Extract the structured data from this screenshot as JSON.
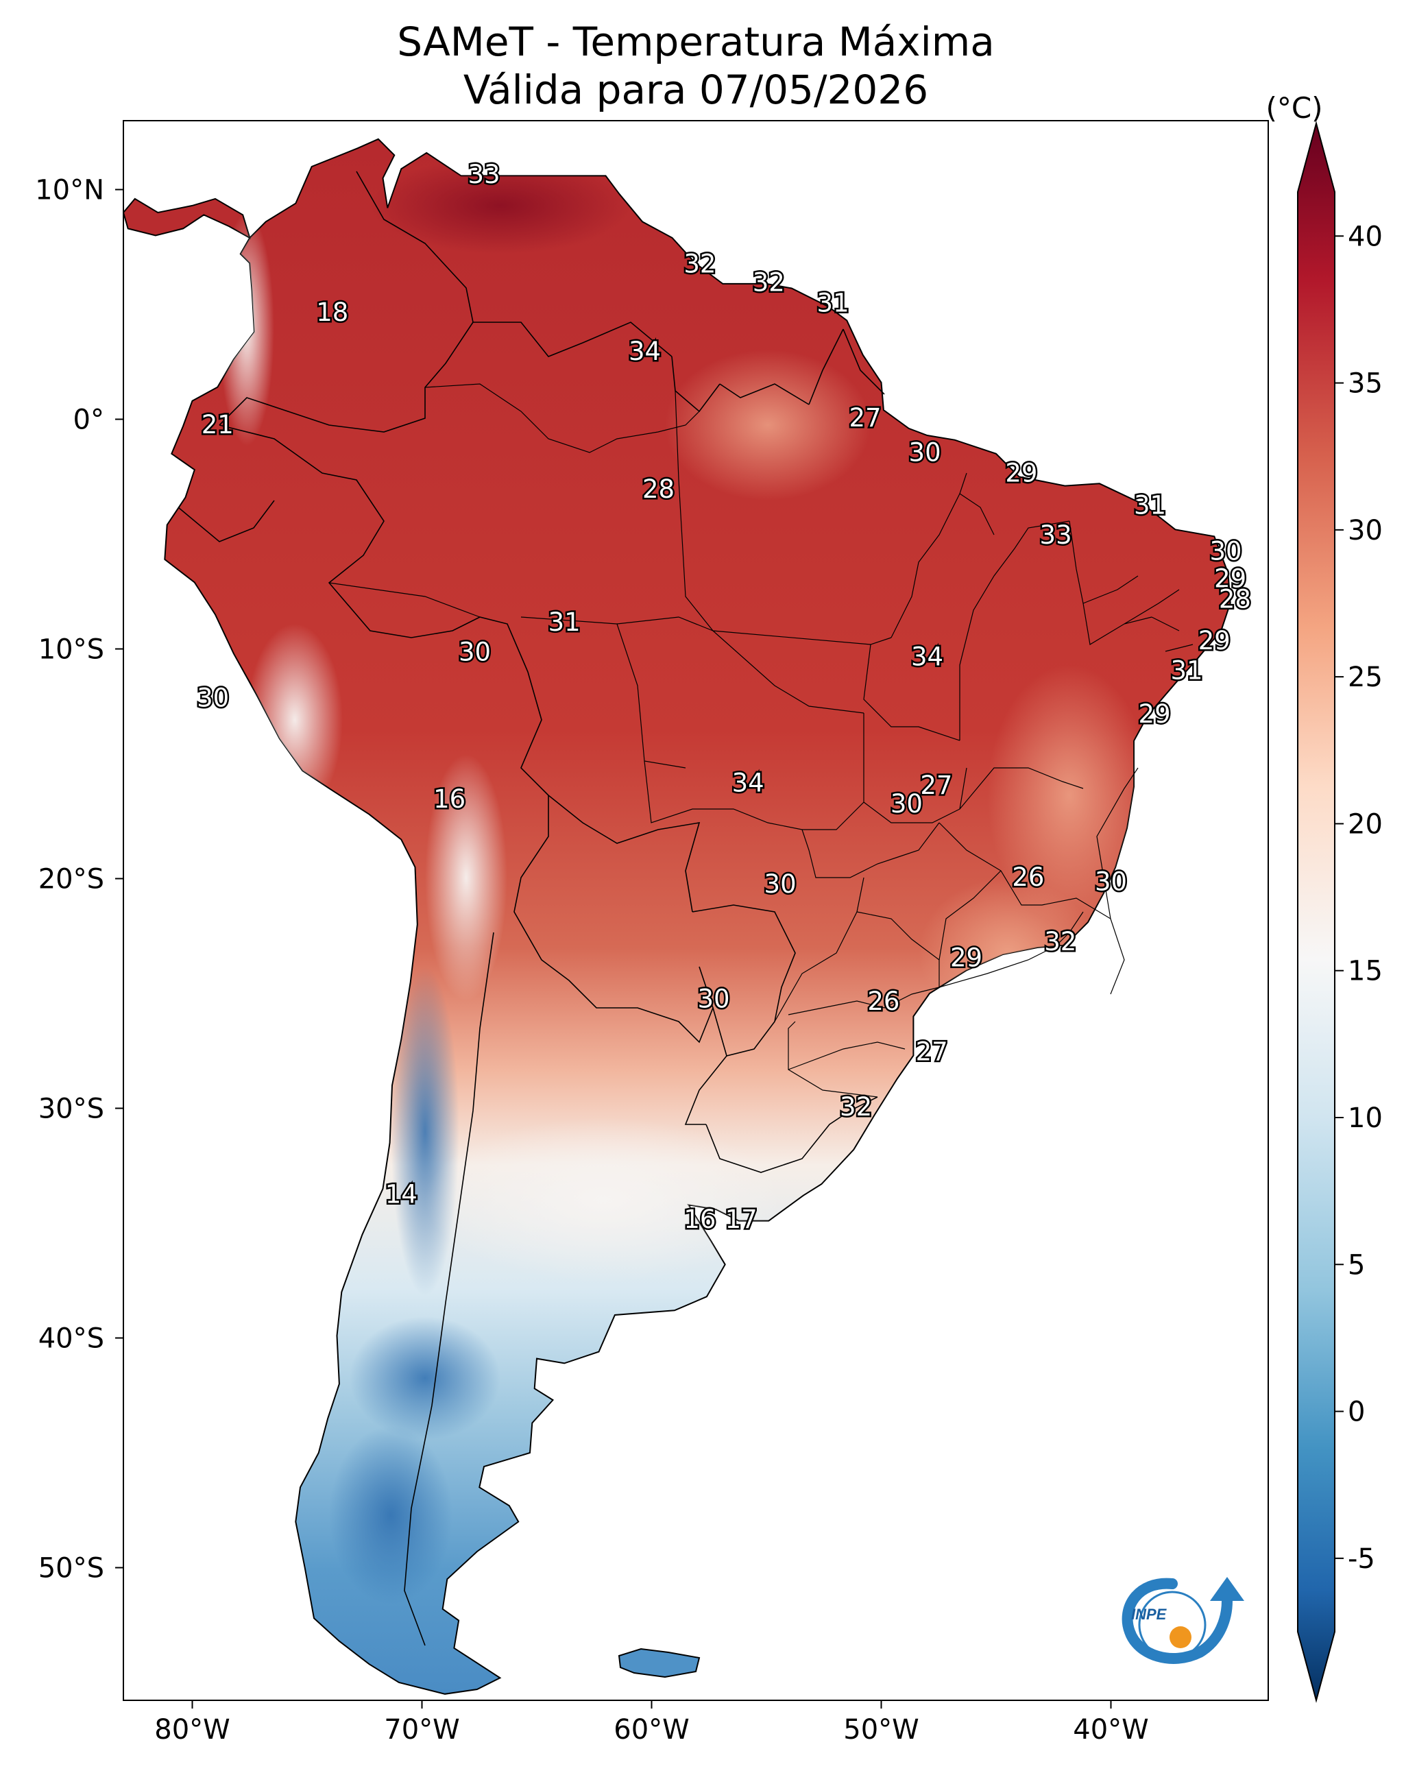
{
  "title_line1": "SAMeT - Temperatura Máxima",
  "title_line2": "Válida para 07/05/2026",
  "colorbar": {
    "unit": "(°C)",
    "ticks": [
      "40",
      "35",
      "30",
      "25",
      "20",
      "15",
      "10",
      "5",
      "0",
      "-5"
    ],
    "colors": [
      "#67001f",
      "#b2182b",
      "#d6604d",
      "#f4a582",
      "#fddbc7",
      "#f7f7f7",
      "#d1e5f0",
      "#92c5de",
      "#4393c3",
      "#2166ac",
      "#053061"
    ]
  },
  "lat_labels": [
    "10°N",
    "0°",
    "10°S",
    "20°S",
    "30°S",
    "40°S",
    "50°S"
  ],
  "lon_labels": [
    "80°W",
    "70°W",
    "60°W",
    "50°W",
    "40°W"
  ],
  "temperature_labels": [
    {
      "text": "33",
      "lon": -67.3,
      "lat": 10.6
    },
    {
      "text": "32",
      "lon": -57.9,
      "lat": 6.7
    },
    {
      "text": "32",
      "lon": -54.9,
      "lat": 5.9
    },
    {
      "text": "31",
      "lon": -52.1,
      "lat": 5.0
    },
    {
      "text": "18",
      "lon": -73.9,
      "lat": 4.6
    },
    {
      "text": "34",
      "lon": -60.3,
      "lat": 2.9
    },
    {
      "text": "21",
      "lon": -78.9,
      "lat": -0.3
    },
    {
      "text": "27",
      "lon": -50.7,
      "lat": 0.0
    },
    {
      "text": "30",
      "lon": -48.1,
      "lat": -1.5
    },
    {
      "text": "29",
      "lon": -43.9,
      "lat": -2.4
    },
    {
      "text": "28",
      "lon": -59.7,
      "lat": -3.1
    },
    {
      "text": "31",
      "lon": -38.3,
      "lat": -3.8
    },
    {
      "text": "33",
      "lon": -42.4,
      "lat": -5.1
    },
    {
      "text": "30",
      "lon": -35.0,
      "lat": -5.8
    },
    {
      "text": "29",
      "lon": -34.8,
      "lat": -7.0
    },
    {
      "text": "28",
      "lon": -34.6,
      "lat": -7.9
    },
    {
      "text": "31",
      "lon": -63.8,
      "lat": -8.9
    },
    {
      "text": "29",
      "lon": -35.5,
      "lat": -9.7
    },
    {
      "text": "30",
      "lon": -67.7,
      "lat": -10.2
    },
    {
      "text": "34",
      "lon": -48.0,
      "lat": -10.4
    },
    {
      "text": "31",
      "lon": -36.7,
      "lat": -11.0
    },
    {
      "text": "30",
      "lon": -79.1,
      "lat": -12.2
    },
    {
      "text": "29",
      "lon": -38.1,
      "lat": -12.9
    },
    {
      "text": "34",
      "lon": -55.8,
      "lat": -15.9
    },
    {
      "text": "27",
      "lon": -47.6,
      "lat": -16.0
    },
    {
      "text": "16",
      "lon": -68.8,
      "lat": -16.6
    },
    {
      "text": "30",
      "lon": -48.9,
      "lat": -16.8
    },
    {
      "text": "26",
      "lon": -43.6,
      "lat": -20.0
    },
    {
      "text": "30",
      "lon": -40.0,
      "lat": -20.2
    },
    {
      "text": "30",
      "lon": -54.4,
      "lat": -20.3
    },
    {
      "text": "32",
      "lon": -42.2,
      "lat": -22.8
    },
    {
      "text": "29",
      "lon": -46.3,
      "lat": -23.5
    },
    {
      "text": "30",
      "lon": -57.3,
      "lat": -25.3
    },
    {
      "text": "26",
      "lon": -49.9,
      "lat": -25.4
    },
    {
      "text": "27",
      "lon": -47.8,
      "lat": -27.6
    },
    {
      "text": "32",
      "lon": -51.1,
      "lat": -30.0
    },
    {
      "text": "14",
      "lon": -70.9,
      "lat": -33.8
    },
    {
      "text": "16",
      "lon": -57.9,
      "lat": -34.9
    },
    {
      "text": "17",
      "lon": -56.1,
      "lat": -34.9
    }
  ]
}
